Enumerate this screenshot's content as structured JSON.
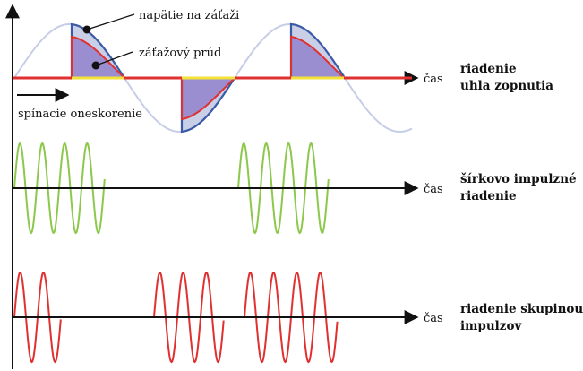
{
  "annotations": {
    "load_voltage": "napätie na záťaži",
    "load_current": "záťažový prúd",
    "switching_delay": "spínacie oneskorenie"
  },
  "axis_label": "čas",
  "panels": [
    {
      "id": "phase-angle",
      "title_line1": "riadenie",
      "title_line2": "uhla zopnutia"
    },
    {
      "id": "pulse-width",
      "title_line1": "šírkovo impulzné",
      "title_line2": "riadenie"
    },
    {
      "id": "burst",
      "title_line1": "riadenie skupinou",
      "title_line2": "impulzov"
    }
  ],
  "colors": {
    "axis": "#111111",
    "reference_wave": "#c6cde6",
    "load_voltage_line": "#3a5aa8",
    "load_voltage_fill": "#c9cfe6",
    "load_current_line": "#e03030",
    "load_current_fill": "#9a8ed0",
    "conduction_bar": "#f2e23a",
    "zero_line_red": "#e03030",
    "pulse_width_wave": "#8cc84b",
    "burst_wave": "#e03030"
  }
}
